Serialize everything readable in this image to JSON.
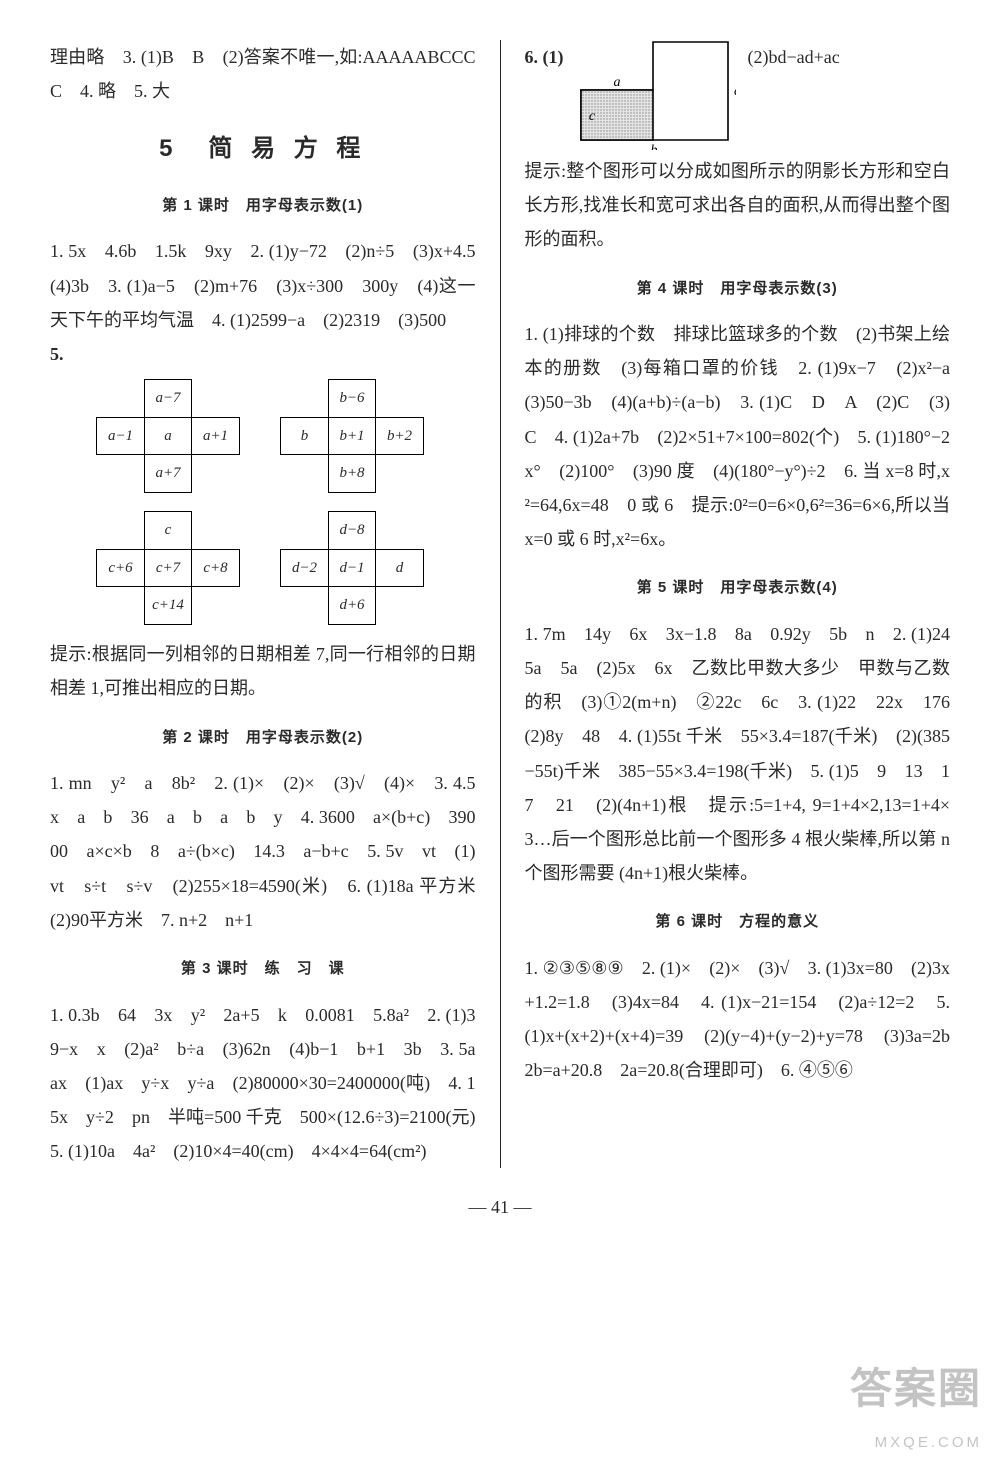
{
  "left": {
    "intro": "理由略　3. (1)B　B　(2)答案不唯一,如:AAAAABCCCC　4. 略　5. 大",
    "chapter": "5　简 易 方 程",
    "l1_title": "第 1 课时　用字母表示数(1)",
    "l1_p1": "1. 5x　4.6b　1.5k　9xy　2. (1)y−72　(2)n÷5　(3)x+4.5　(4)3b　3. (1)a−5　(2)m+76　(3)x÷300　300y　(4)这一天下午的平均气温　4. (1)2599−a　(2)2319　(3)500",
    "l1_q5": "5.",
    "cross1": [
      "",
      "a−7",
      "",
      "a−1",
      "a",
      "a+1",
      "",
      "a+7",
      ""
    ],
    "cross2": [
      "",
      "b−6",
      "",
      "b",
      "b+1",
      "b+2",
      "",
      "b+8",
      ""
    ],
    "cross3": [
      "",
      "c",
      "",
      "c+6",
      "c+7",
      "c+8",
      "",
      "c+14",
      ""
    ],
    "cross4": [
      "",
      "d−8",
      "",
      "d−2",
      "d−1",
      "d",
      "",
      "d+6",
      ""
    ],
    "l1_hint": "提示:根据同一列相邻的日期相差 7,同一行相邻的日期相差 1,可推出相应的日期。",
    "l2_title": "第 2 课时　用字母表示数(2)",
    "l2_body": "1. mn　y²　a　8b²　2. (1)×　(2)×　(3)√　(4)×　3. 4.5　x　a　b　36　a　b　a　b　y　4. 3600　a×(b+c)　39000　a×c×b　8　a÷(b×c)　14.3　a−b+c　5. 5v　vt　(1)vt　s÷t　s÷v　(2)255×18=4590(米)　6. (1)18a 平方米　(2)90平方米　7. n+2　n+1",
    "l3_title": "第 3 课时　练　习　课",
    "l3_body": "1. 0.3b　64　3x　y²　2a+5　k　0.0081　5.8a²　2. (1)39−x　x　(2)a²　b÷a　(3)62n　(4)b−1　b+1　3b　3. 5a　ax　(1)ax　y÷x　y÷a　(2)80000×30=2400000(吨)　4. 15x　y÷2　pn　半吨=500 千克　500×(12.6÷3)=2100(元)　5. (1)10a　4a²　(2)10×4=40(cm)　4×4×4=64(cm²)"
  },
  "right": {
    "q6_label": "6. (1)",
    "q6_right": "(2)bd−ad+ac",
    "lshape": {
      "a": "a",
      "b": "b",
      "c": "c",
      "d": "d",
      "outer_w": 150,
      "outer_h": 100,
      "inner_w": 72,
      "inner_h": 50,
      "stroke": "#000",
      "fill_hatch": "#bdbdbd"
    },
    "q6_hint": "提示:整个图形可以分成如图所示的阴影长方形和空白长方形,找准长和宽可求出各自的面积,从而得出整个图形的面积。",
    "l4_title": "第 4 课时　用字母表示数(3)",
    "l4_body": "1. (1)排球的个数　排球比篮球多的个数　(2)书架上绘本的册数　(3)每箱口罩的价钱　2. (1)9x−7　(2)x²−a　(3)50−3b　(4)(a+b)÷(a−b)　3. (1)C　D　A　(2)C　(3)C　4. (1)2a+7b　(2)2×51+7×100=802(个)　5. (1)180°−2x°　(2)100°　(3)90 度　(4)(180°−y°)÷2　6. 当 x=8 时,x²=64,6x=48　0 或 6　提示:0²=0=6×0,6²=36=6×6,所以当 x=0 或 6 时,x²=6x。",
    "l5_title": "第 5 课时　用字母表示数(4)",
    "l5_body": "1. 7m　14y　6x　3x−1.8　8a　0.92y　5b　n　2. (1)245a　5a　(2)5x　6x　乙数比甲数大多少　甲数与乙数的积　(3)①2(m+n)　②22c　6c　3. (1)22　22x　176　(2)8y　48　4. (1)55t 千米　55×3.4=187(千米)　(2)(385−55t)千米　385−55×3.4=198(千米)　5. (1)5　9　13　17　21　(2)(4n+1)根　提示:5=1+4, 9=1+4×2,13=1+4×3…后一个图形总比前一个图形多 4 根火柴棒,所以第 n 个图形需要 (4n+1)根火柴棒。",
    "l6_title": "第 6 课时　方程的意义",
    "l6_body": "1. ②③⑤⑧⑨　2. (1)×　(2)×　(3)√　3. (1)3x=80　(2)3x+1.2=1.8　(3)4x=84　4. (1)x−21=154　(2)a÷12=2　5. (1)x+(x+2)+(x+4)=39　(2)(y−4)+(y−2)+y=78　(3)3a=2b　2b=a+20.8　2a=20.8(合理即可)　6. ④⑤⑥"
  },
  "page": "— 41 —",
  "watermark_big": "答案圈",
  "watermark_small": "MXQE.COM"
}
